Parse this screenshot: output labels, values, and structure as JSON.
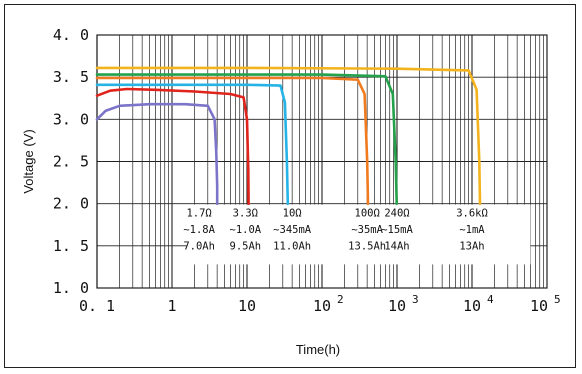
{
  "chart_data": {
    "type": "line",
    "title": "",
    "xlabel": "Time(h)",
    "ylabel": "Voltage (V)",
    "xscale": "log",
    "xlim": [
      0.1,
      100000
    ],
    "ylim": [
      1.0,
      4.0
    ],
    "grid": true,
    "x_ticks": [
      {
        "value": 0.1,
        "label": "0. 1"
      },
      {
        "value": 1,
        "label": "1"
      },
      {
        "value": 10,
        "label": "10"
      },
      {
        "value": 100,
        "label": "10",
        "sup": "2"
      },
      {
        "value": 1000,
        "label": "10",
        "sup": "3"
      },
      {
        "value": 10000,
        "label": "10",
        "sup": "4"
      },
      {
        "value": 100000,
        "label": "10",
        "sup": "5"
      }
    ],
    "y_ticks": [
      {
        "value": 1.0,
        "label": "1. 0"
      },
      {
        "value": 1.5,
        "label": "1. 5"
      },
      {
        "value": 2.0,
        "label": "2. 0"
      },
      {
        "value": 2.5,
        "label": "2. 5"
      },
      {
        "value": 3.0,
        "label": "3. 0"
      },
      {
        "value": 3.5,
        "label": "3. 5"
      },
      {
        "value": 4.0,
        "label": "4. 0"
      }
    ],
    "series": [
      {
        "color": "#7b74c8",
        "x": [
          0.1,
          0.13,
          0.2,
          0.5,
          1.5,
          3.0,
          3.7,
          3.9,
          4.0,
          4.0
        ],
        "y": [
          3.0,
          3.1,
          3.16,
          3.18,
          3.18,
          3.16,
          3.0,
          2.6,
          2.2,
          2.0
        ]
      },
      {
        "color": "#e0241b",
        "x": [
          0.1,
          0.15,
          0.25,
          0.6,
          2.0,
          6.0,
          9.0,
          10.0,
          10.4,
          10.5
        ],
        "y": [
          3.28,
          3.34,
          3.36,
          3.35,
          3.33,
          3.3,
          3.26,
          3.0,
          2.4,
          2.0
        ]
      },
      {
        "color": "#26b3e6",
        "x": [
          0.1,
          1.0,
          10.0,
          28.0,
          32.0,
          34.0,
          35.0
        ],
        "y": [
          3.41,
          3.41,
          3.41,
          3.4,
          3.2,
          2.5,
          2.0
        ]
      },
      {
        "color": "#f07b1e",
        "x": [
          0.1,
          10.0,
          100.0,
          300.0,
          370.0,
          400.0,
          410.0
        ],
        "y": [
          3.49,
          3.49,
          3.49,
          3.47,
          3.3,
          2.5,
          2.0
        ]
      },
      {
        "color": "#23a24b",
        "x": [
          0.1,
          10.0,
          100.0,
          700.0,
          880.0,
          960.0,
          990.0
        ],
        "y": [
          3.53,
          3.53,
          3.53,
          3.51,
          3.3,
          2.5,
          2.0
        ]
      },
      {
        "color": "#f2b31c",
        "x": [
          0.1,
          10.0,
          1000.0,
          9000.0,
          11500.0,
          12500.0,
          12800.0
        ],
        "y": [
          3.61,
          3.61,
          3.6,
          3.58,
          3.35,
          2.5,
          2.0
        ]
      }
    ],
    "annotations": [
      {
        "lines": [
          "1.7Ω",
          "~1.8A",
          "7.0Ah"
        ],
        "x": 2.3
      },
      {
        "lines": [
          "3.3Ω",
          "~1.0A",
          "9.5Ah"
        ],
        "x": 9.5
      },
      {
        "lines": [
          "10Ω",
          "~345mA",
          "11.0Ah"
        ],
        "x": 40
      },
      {
        "lines": [
          "100Ω",
          "~35mA",
          "13.5Ah"
        ],
        "x": 400
      },
      {
        "lines": [
          "240Ω",
          "~15mA",
          "14Ah"
        ],
        "x": 1000
      },
      {
        "lines": [
          "3.6kΩ",
          "~1mA",
          "13Ah"
        ],
        "x": 10000
      }
    ]
  }
}
